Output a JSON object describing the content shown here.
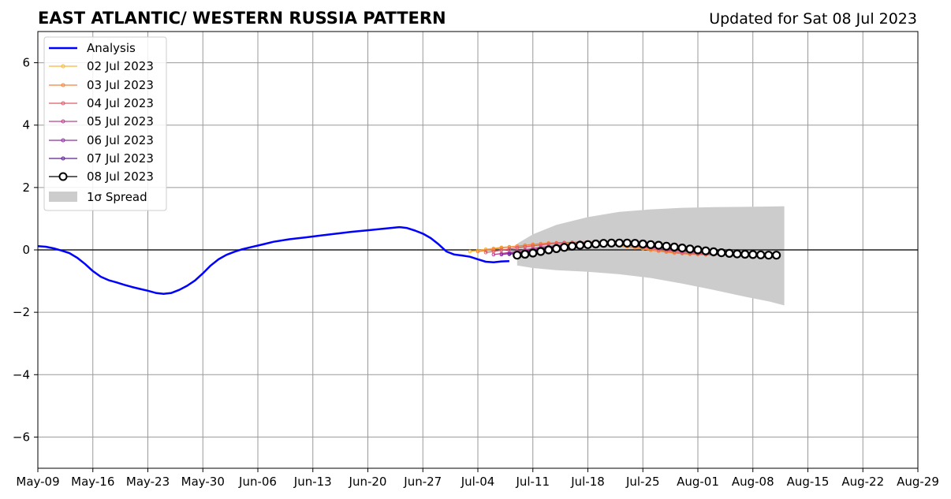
{
  "chart_data": {
    "type": "line",
    "title": "EAST ATLANTIC/ WESTERN RUSSIA PATTERN",
    "subtitle": "Updated for Sat 08 Jul 2023",
    "xlabel": "",
    "ylabel": "",
    "xlim": [
      "2023-05-09",
      "2023-08-29"
    ],
    "ylim": [
      -7,
      7
    ],
    "grid": true,
    "zero_line": true,
    "legend_position": "top-left",
    "x_ticks": [
      "May-09",
      "May-16",
      "May-23",
      "May-30",
      "Jun-06",
      "Jun-13",
      "Jun-20",
      "Jun-27",
      "Jul-04",
      "Jul-11",
      "Jul-18",
      "Jul-25",
      "Aug-01",
      "Aug-08",
      "Aug-15",
      "Aug-22",
      "Aug-29"
    ],
    "y_ticks": [
      6,
      4,
      2,
      0,
      -2,
      -4,
      -6
    ],
    "y_tick_labels": [
      "6",
      "4",
      "2",
      "0",
      "−2",
      "−4",
      "−6"
    ],
    "analysis": {
      "name": "Analysis",
      "color": "#0000ff",
      "x": [
        "2023-05-09",
        "2023-05-10",
        "2023-05-11",
        "2023-05-12",
        "2023-05-13",
        "2023-05-14",
        "2023-05-15",
        "2023-05-16",
        "2023-05-17",
        "2023-05-18",
        "2023-05-19",
        "2023-05-20",
        "2023-05-21",
        "2023-05-22",
        "2023-05-23",
        "2023-05-24",
        "2023-05-25",
        "2023-05-26",
        "2023-05-27",
        "2023-05-28",
        "2023-05-29",
        "2023-05-30",
        "2023-05-31",
        "2023-06-01",
        "2023-06-02",
        "2023-06-03",
        "2023-06-04",
        "2023-06-05",
        "2023-06-06",
        "2023-06-07",
        "2023-06-08",
        "2023-06-10",
        "2023-06-12",
        "2023-06-14",
        "2023-06-16",
        "2023-06-18",
        "2023-06-20",
        "2023-06-22",
        "2023-06-24",
        "2023-06-25",
        "2023-06-26",
        "2023-06-27",
        "2023-06-28",
        "2023-06-29",
        "2023-06-30",
        "2023-07-01",
        "2023-07-02",
        "2023-07-03",
        "2023-07-04",
        "2023-07-05",
        "2023-07-06",
        "2023-07-07",
        "2023-07-08"
      ],
      "values": [
        0.12,
        0.1,
        0.05,
        -0.02,
        -0.1,
        -0.25,
        -0.45,
        -0.68,
        -0.86,
        -0.97,
        -1.04,
        -1.12,
        -1.19,
        -1.25,
        -1.31,
        -1.38,
        -1.41,
        -1.38,
        -1.28,
        -1.15,
        -0.98,
        -0.75,
        -0.5,
        -0.3,
        -0.16,
        -0.06,
        0.02,
        0.08,
        0.14,
        0.2,
        0.26,
        0.34,
        0.4,
        0.46,
        0.52,
        0.58,
        0.63,
        0.68,
        0.73,
        0.7,
        0.62,
        0.52,
        0.38,
        0.18,
        -0.05,
        -0.15,
        -0.18,
        -0.22,
        -0.3,
        -0.38,
        -0.4,
        -0.37,
        -0.36
      ]
    },
    "spread": {
      "name": "1σ Spread",
      "color": "#cccccc",
      "x": [
        "2023-07-09",
        "2023-07-11",
        "2023-07-14",
        "2023-07-18",
        "2023-07-22",
        "2023-07-26",
        "2023-07-30",
        "2023-08-03",
        "2023-08-07",
        "2023-08-10",
        "2023-08-12"
      ],
      "upper": [
        0.2,
        0.5,
        0.8,
        1.05,
        1.22,
        1.3,
        1.35,
        1.37,
        1.38,
        1.39,
        1.4
      ],
      "lower": [
        -0.5,
        -0.58,
        -0.65,
        -0.7,
        -0.78,
        -0.9,
        -1.08,
        -1.28,
        -1.5,
        -1.65,
        -1.78
      ]
    },
    "series": [
      {
        "name": "02 Jul 2023",
        "color": "#f8b73a",
        "start": "2023-07-03",
        "values": [
          -0.05,
          -0.02,
          0.02,
          0.05,
          0.08,
          0.1,
          0.12,
          0.14,
          0.16,
          0.18,
          0.2,
          0.21,
          0.22,
          0.22,
          0.22,
          0.21,
          0.2,
          0.18,
          0.16,
          0.13,
          0.1,
          0.07,
          0.04,
          0.01,
          -0.02,
          -0.05,
          -0.08,
          -0.1,
          -0.12,
          -0.13,
          -0.14,
          -0.14,
          -0.14,
          -0.14,
          -0.14,
          -0.14,
          -0.14
        ]
      },
      {
        "name": "03 Jul 2023",
        "color": "#f1843f",
        "start": "2023-07-04",
        "values": [
          -0.05,
          -0.02,
          0.02,
          0.06,
          0.09,
          0.12,
          0.15,
          0.18,
          0.2,
          0.22,
          0.23,
          0.24,
          0.24,
          0.24,
          0.24,
          0.23,
          0.21,
          0.18,
          0.15,
          0.11,
          0.07,
          0.03,
          -0.01,
          -0.04,
          -0.07,
          -0.1,
          -0.12,
          -0.14,
          -0.15,
          -0.16,
          -0.16,
          -0.16,
          -0.15,
          -0.15,
          -0.14,
          -0.13
        ]
      },
      {
        "name": "04 Jul 2023",
        "color": "#dc5c6a",
        "start": "2023-07-05",
        "values": [
          -0.08,
          -0.05,
          -0.01,
          0.03,
          0.07,
          0.1,
          0.13,
          0.16,
          0.19,
          0.21,
          0.23,
          0.24,
          0.25,
          0.25,
          0.24,
          0.23,
          0.21,
          0.18,
          0.15,
          0.12,
          0.08,
          0.04,
          0.0,
          -0.03,
          -0.06,
          -0.09,
          -0.11,
          -0.13,
          -0.14,
          -0.15,
          -0.15,
          -0.15,
          -0.14,
          -0.14,
          -0.13
        ]
      },
      {
        "name": "05 Jul 2023",
        "color": "#b8418e",
        "start": "2023-07-06",
        "values": [
          -0.15,
          -0.12,
          -0.08,
          -0.04,
          0.0,
          0.04,
          0.08,
          0.11,
          0.14,
          0.17,
          0.19,
          0.21,
          0.22,
          0.22,
          0.22,
          0.21,
          0.19,
          0.17,
          0.14,
          0.11,
          0.08,
          0.05,
          0.02,
          -0.01,
          -0.04,
          -0.07,
          -0.09,
          -0.11,
          -0.12,
          -0.13,
          -0.13,
          -0.13,
          -0.13,
          -0.12
        ]
      },
      {
        "name": "06 Jul 2023",
        "color": "#8e2fa1",
        "start": "2023-07-07",
        "values": [
          -0.15,
          -0.12,
          -0.08,
          -0.04,
          0.0,
          0.04,
          0.08,
          0.11,
          0.14,
          0.16,
          0.18,
          0.19,
          0.2,
          0.2,
          0.2,
          0.19,
          0.17,
          0.15,
          0.13,
          0.1,
          0.07,
          0.04,
          0.01,
          -0.02,
          -0.04,
          -0.07,
          -0.09,
          -0.1,
          -0.11,
          -0.12,
          -0.12,
          -0.12,
          -0.12
        ]
      },
      {
        "name": "07 Jul 2023",
        "color": "#5c1d96",
        "start": "2023-07-08",
        "values": [
          -0.14,
          -0.11,
          -0.07,
          -0.03,
          0.01,
          0.05,
          0.08,
          0.11,
          0.14,
          0.16,
          0.18,
          0.19,
          0.2,
          0.2,
          0.2,
          0.19,
          0.17,
          0.15,
          0.13,
          0.1,
          0.07,
          0.04,
          0.01,
          -0.02,
          -0.05,
          -0.07,
          -0.09,
          -0.11,
          -0.12,
          -0.13,
          -0.13,
          -0.13
        ]
      },
      {
        "name": "08 Jul 2023",
        "color": "#000000",
        "start": "2023-07-09",
        "values": [
          -0.17,
          -0.14,
          -0.1,
          -0.05,
          0.0,
          0.04,
          0.08,
          0.12,
          0.15,
          0.17,
          0.19,
          0.21,
          0.22,
          0.22,
          0.22,
          0.21,
          0.19,
          0.17,
          0.15,
          0.12,
          0.09,
          0.06,
          0.03,
          0.0,
          -0.03,
          -0.06,
          -0.09,
          -0.11,
          -0.13,
          -0.14,
          -0.15,
          -0.16,
          -0.17,
          -0.17
        ]
      }
    ]
  }
}
